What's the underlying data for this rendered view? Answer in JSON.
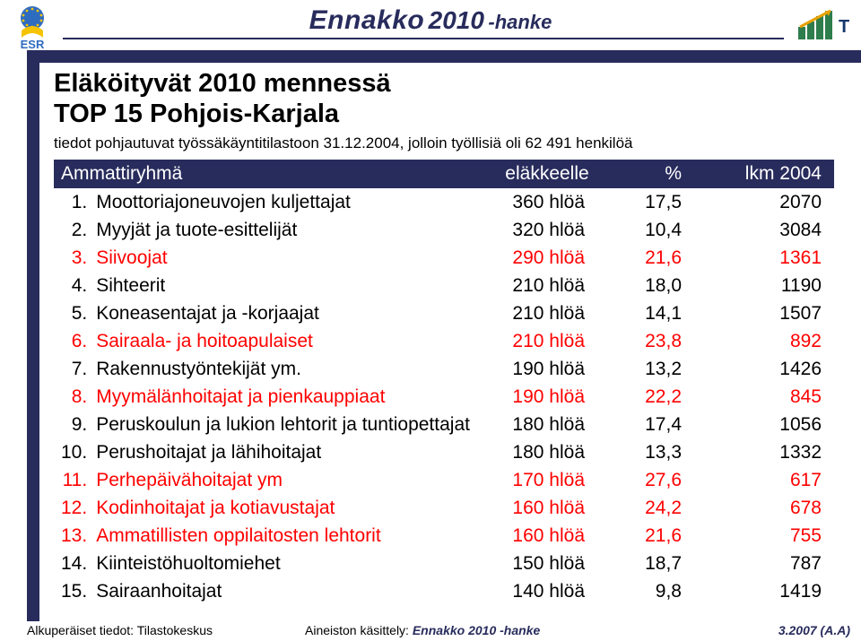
{
  "colors": {
    "brand_navy": "#282c5c",
    "highlight": "#ff0000",
    "esr_blue": "#2e6cc0",
    "esr_yellow": "#f6c300",
    "esr_text": "#2e6cc0",
    "te_green": "#2e7d4d",
    "te_text": "#16386c"
  },
  "header": {
    "brand_word": "Ennakko",
    "brand_year": "2010",
    "brand_suffix": " -hanke",
    "esr_label": "ESR",
    "te_label": "T&E"
  },
  "title_line1": "Eläköityvät 2010 mennessä",
  "title_line2": "TOP 15 Pohjois-Karjala",
  "subtitle": "tiedot pohjautuvat työssäkäyntitilastoon 31.12.2004, jolloin työllisiä oli 62 491 henkilöä",
  "table": {
    "columns": {
      "name": "Ammattiryhmä",
      "elakkeelle": "eläkkeelle",
      "pct": "%",
      "lkm": "lkm 2004"
    },
    "rows": [
      {
        "idx": "1.",
        "name": "Moottoriajoneuvojen kuljettajat",
        "elak": "360 hlöä",
        "pct": "17,5",
        "lkm": "2070",
        "hi": false
      },
      {
        "idx": "2.",
        "name": "Myyjät ja tuote-esittelijät",
        "elak": "320 hlöä",
        "pct": "10,4",
        "lkm": "3084",
        "hi": false
      },
      {
        "idx": "3.",
        "name": "Siivoojat",
        "elak": "290 hlöä",
        "pct": "21,6",
        "lkm": "1361",
        "hi": true
      },
      {
        "idx": "4.",
        "name": "Sihteerit",
        "elak": "210 hlöä",
        "pct": "18,0",
        "lkm": "1190",
        "hi": false
      },
      {
        "idx": "5.",
        "name": "Koneasentajat ja -korjaajat",
        "elak": "210 hlöä",
        "pct": "14,1",
        "lkm": "1507",
        "hi": false
      },
      {
        "idx": "6.",
        "name": "Sairaala- ja hoitoapulaiset",
        "elak": "210 hlöä",
        "pct": "23,8",
        "lkm": "892",
        "hi": true
      },
      {
        "idx": "7.",
        "name": "Rakennustyöntekijät ym.",
        "elak": "190 hlöä",
        "pct": "13,2",
        "lkm": "1426",
        "hi": false
      },
      {
        "idx": "8.",
        "name": "Myymälänhoitajat ja pienkauppiaat",
        "elak": "190 hlöä",
        "pct": "22,2",
        "lkm": "845",
        "hi": true
      },
      {
        "idx": "9.",
        "name": "Peruskoulun ja lukion lehtorit ja tuntiopettajat",
        "elak": "180 hlöä",
        "pct": "17,4",
        "lkm": "1056",
        "hi": false
      },
      {
        "idx": "10.",
        "name": "Perushoitajat ja lähihoitajat",
        "elak": "180 hlöä",
        "pct": "13,3",
        "lkm": "1332",
        "hi": false
      },
      {
        "idx": "11.",
        "name": "Perhepäivähoitajat ym",
        "elak": "170 hlöä",
        "pct": "27,6",
        "lkm": "617",
        "hi": true
      },
      {
        "idx": "12.",
        "name": "Kodinhoitajat ja kotiavustajat",
        "elak": "160 hlöä",
        "pct": "24,2",
        "lkm": "678",
        "hi": true
      },
      {
        "idx": "13.",
        "name": "Ammatillisten oppilaitosten lehtorit",
        "elak": "160 hlöä",
        "pct": "21,6",
        "lkm": "755",
        "hi": true
      },
      {
        "idx": "14.",
        "name": "Kiinteistöhuoltomiehet",
        "elak": "150 hlöä",
        "pct": "18,7",
        "lkm": "787",
        "hi": false
      },
      {
        "idx": "15.",
        "name": "Sairaanhoitajat",
        "elak": "140 hlöä",
        "pct": "9,8",
        "lkm": "1419",
        "hi": false
      }
    ]
  },
  "footer": {
    "source": "Alkuperäiset tiedot: Tilastokeskus",
    "mid_prefix": "Aineiston käsittely:",
    "mid_brand_word": "Ennakko",
    "mid_brand_year": "2010",
    "mid_brand_suffix": " -hanke",
    "right": "3.2007 (A.A)"
  }
}
